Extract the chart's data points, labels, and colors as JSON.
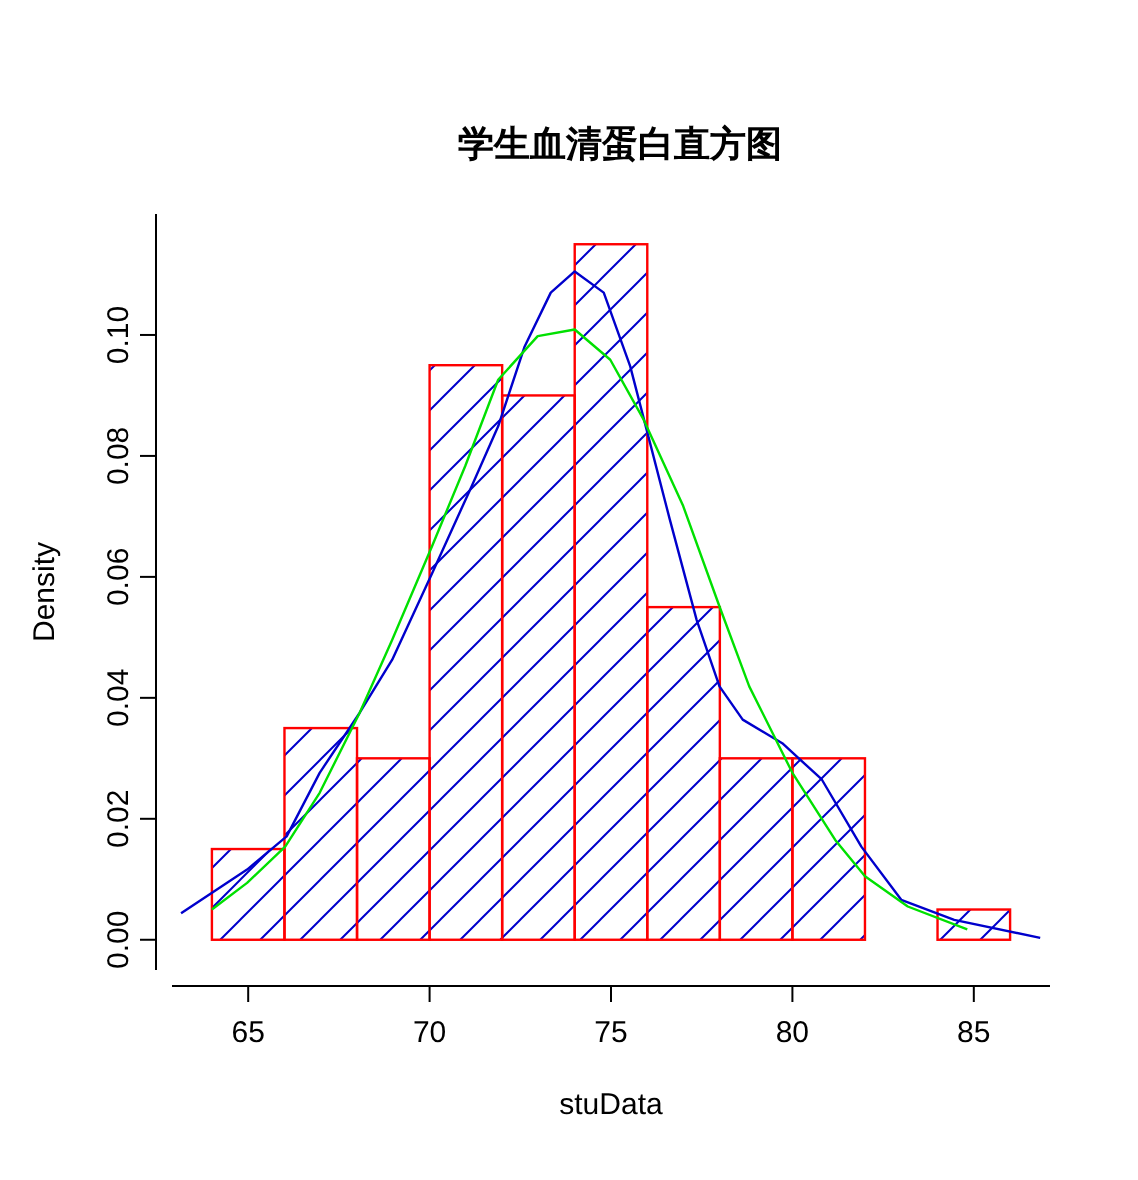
{
  "chart_data": {
    "type": "histogram",
    "title": "学生血清蛋白直方图",
    "xlabel": "stuData",
    "ylabel": "Density",
    "xlim": [
      62.9,
      87.1
    ],
    "ylim": [
      -0.005,
      0.12
    ],
    "xticks": [
      65,
      70,
      75,
      80,
      85
    ],
    "yticks": [
      {
        "value": 0,
        "label": "0.00"
      },
      0.02,
      0.04,
      0.06,
      0.08,
      {
        "value": 0.1,
        "label": "0.10"
      }
    ],
    "series": [
      {
        "color": "#ff0000",
        "bins": [
          64,
          66,
          68,
          70,
          72,
          74,
          76,
          78,
          80,
          82,
          84,
          86
        ],
        "values": [
          0.015,
          0.035,
          0.03,
          0.095,
          0.09,
          0.115,
          0.055,
          0.03,
          0.03,
          0,
          0.005
        ]
      },
      {
        "type": "line",
        "color": "#0000cc",
        "x": [
          63.15,
          64.97,
          66.06,
          66.97,
          68.07,
          68.97,
          70.07,
          71.16,
          71.89,
          72.62,
          73.34,
          74.0,
          74.8,
          75.53,
          75.91,
          76.62,
          77.36,
          77.99,
          78.63,
          79.72,
          80.81,
          81.9,
          83.0,
          84.46,
          86.83
        ],
        "values": [
          0.0044,
          0.0116,
          0.0171,
          0.0276,
          0.0375,
          0.0463,
          0.0606,
          0.075,
          0.0849,
          0.0981,
          0.107,
          0.1105,
          0.107,
          0.0948,
          0.086,
          0.0695,
          0.0529,
          0.0419,
          0.0364,
          0.0325,
          0.0265,
          0.0154,
          0.0066,
          0.0033,
          0.0003
        ]
      },
      {
        "type": "line",
        "color": "#00e000",
        "x": [
          64.0,
          64.97,
          66.02,
          66.97,
          68.07,
          68.97,
          70.07,
          70.98,
          71.89,
          72.98,
          74.0,
          74.98,
          75.9,
          76.99,
          77.99,
          78.81,
          80.0,
          81.18,
          82.0,
          83.18,
          84.82
        ],
        "values": [
          0.005,
          0.0094,
          0.0154,
          0.0243,
          0.0375,
          0.0496,
          0.0651,
          0.0783,
          0.0926,
          0.0998,
          0.1009,
          0.0959,
          0.086,
          0.0717,
          0.0551,
          0.0419,
          0.0276,
          0.0165,
          0.0105,
          0.0055,
          0.0017
        ]
      }
    ]
  }
}
